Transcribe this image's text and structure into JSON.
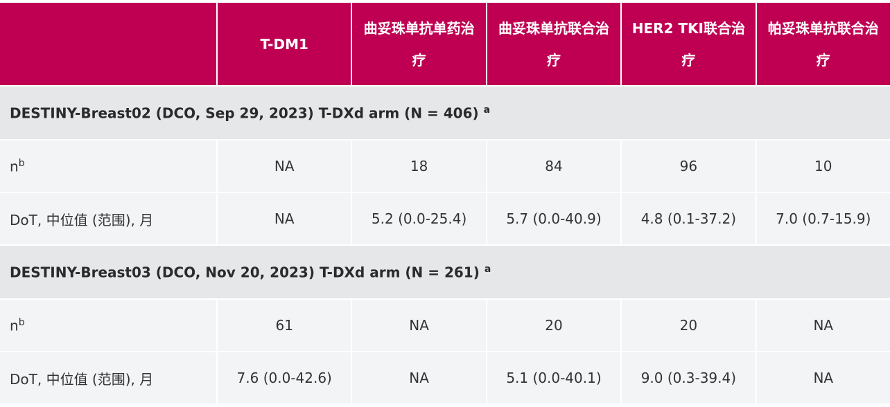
{
  "header": {
    "columns": [
      "",
      "T-DM1",
      "曲妥珠单抗单药治疗",
      "曲妥珠单抗联合治疗",
      "HER2 TKI联合治疗",
      "帕妥珠单抗联合治疗"
    ]
  },
  "sections": [
    {
      "title": "DESTINY-Breast02 (DCO, Sep 29, 2023) T-DXd arm (N = 406)",
      "title_sup": "a",
      "rows": [
        {
          "label": "n",
          "label_sup": "b",
          "values": [
            "NA",
            "18",
            "84",
            "96",
            "10"
          ]
        },
        {
          "label": "DoT, 中位值 (范围), 月",
          "label_sup": "",
          "values": [
            "NA",
            "5.2 (0.0-25.4)",
            "5.7 (0.0-40.9)",
            "4.8 (0.1-37.2)",
            "7.0 (0.7-15.9)"
          ]
        }
      ]
    },
    {
      "title": "DESTINY-Breast03 (DCO, Nov 20, 2023) T-DXd arm (N = 261)",
      "title_sup": "a",
      "rows": [
        {
          "label": "n",
          "label_sup": "b",
          "values": [
            "61",
            "NA",
            "20",
            "20",
            "NA"
          ]
        },
        {
          "label": "DoT, 中位值 (范围), 月",
          "label_sup": "",
          "values": [
            "7.6 (0.0-42.6)",
            "NA",
            "5.1 (0.0-40.1)",
            "9.0 (0.3-39.4)",
            "NA"
          ]
        }
      ]
    }
  ],
  "colors": {
    "header_bg": "#bf0052",
    "section_bg": "#e6e7e9",
    "row_bg": "#f3f4f6"
  }
}
